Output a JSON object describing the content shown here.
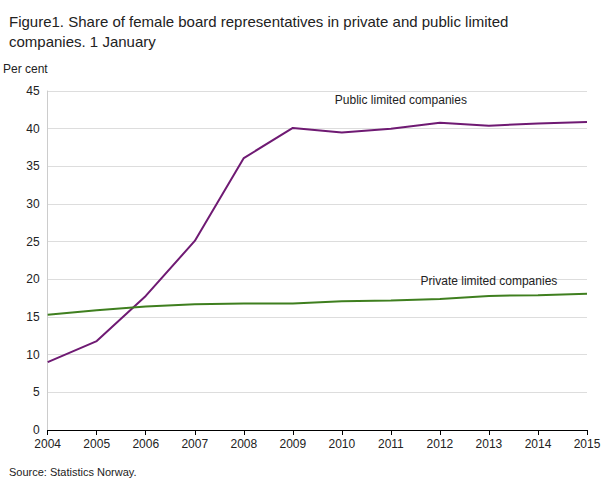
{
  "chart_data": {
    "type": "line",
    "title": "Figure1. Share of female board representatives in private and public limited companies. 1 January",
    "y_label": "Per cent",
    "source": "Source: Statistics Norway.",
    "categories": [
      "2004",
      "2005",
      "2006",
      "2007",
      "2008",
      "2009",
      "2010",
      "2011",
      "2012",
      "2013",
      "2014",
      "2015"
    ],
    "series": [
      {
        "name": "Public limited companies",
        "color": "#6f1a73",
        "values": [
          9.0,
          11.8,
          17.8,
          25.1,
          36.1,
          40.1,
          39.5,
          40.0,
          40.8,
          40.4,
          40.7,
          40.9
        ]
      },
      {
        "name": "Private limited companies",
        "color": "#3f7f1f",
        "values": [
          15.3,
          15.9,
          16.4,
          16.7,
          16.8,
          16.8,
          17.1,
          17.2,
          17.4,
          17.8,
          17.9,
          18.1
        ]
      }
    ],
    "ylim": [
      0,
      45
    ],
    "yticks": [
      0,
      5,
      10,
      15,
      20,
      25,
      30,
      35,
      40,
      45
    ],
    "grid": true
  }
}
